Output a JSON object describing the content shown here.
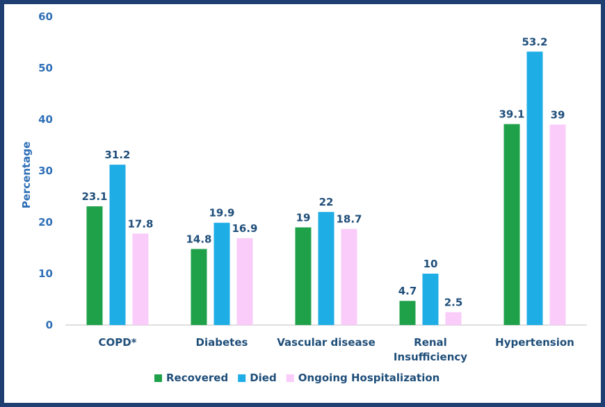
{
  "chart_data": {
    "type": "bar",
    "title": "",
    "xlabel": "",
    "ylabel": "Percentage",
    "ylim": [
      0,
      60
    ],
    "yticks": [
      0,
      10,
      20,
      30,
      40,
      50,
      60
    ],
    "categories": [
      [
        "COPD*"
      ],
      [
        "Diabetes"
      ],
      [
        "Vascular disease"
      ],
      [
        "Renal",
        "Insufficiency"
      ],
      [
        "Hypertension"
      ]
    ],
    "series": [
      {
        "name": "Recovered",
        "color": "#1fa14a",
        "values": [
          23.1,
          14.8,
          19,
          4.7,
          39.1
        ]
      },
      {
        "name": "Died",
        "color": "#1fade6",
        "values": [
          31.2,
          19.9,
          22,
          10,
          53.2
        ]
      },
      {
        "name": "Ongoing Hospitalization",
        "color": "#f9ccf9",
        "values": [
          17.8,
          16.9,
          18.7,
          2.5,
          39
        ]
      }
    ],
    "grid": false,
    "legend_position": "bottom",
    "colors": {
      "background": "#ffffff",
      "frame": "#1f3f73",
      "axis_text": "#2e6fb7",
      "label_text": "#1f4e79"
    }
  }
}
